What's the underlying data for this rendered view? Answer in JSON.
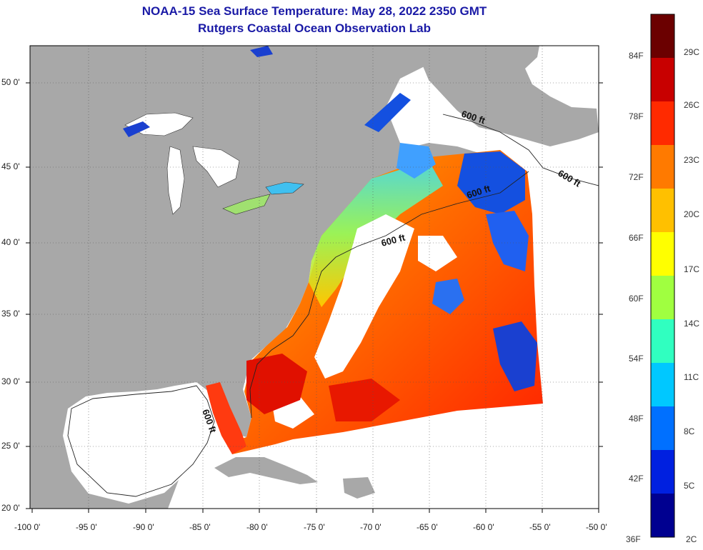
{
  "title": "NOAA-15 Sea Surface Temperature:  May 28, 2022 2350 GMT",
  "subtitle": "Rutgers Coastal Ocean Observation Lab",
  "lat_labels": [
    "50 0'",
    "45 0'",
    "40 0'",
    "35 0'",
    "30 0'",
    "25 0'",
    "20 0'"
  ],
  "lon_labels": [
    "-100 0'",
    "-95 0'",
    "-90 0'",
    "-85 0'",
    "-80 0'",
    "-75 0'",
    "-70 0'",
    "-65 0'",
    "-60 0'",
    "-55 0'",
    "-50 0'"
  ],
  "contour_labels": [
    "600 ft",
    "600 ft",
    "600 ft",
    "600 ft",
    "600 ft"
  ],
  "colorbar": {
    "fahrenheit_labels": [
      "84F",
      "78F",
      "72F",
      "66F",
      "60F",
      "54F",
      "48F",
      "42F",
      "36F"
    ],
    "celsius_labels": [
      "29C",
      "26C",
      "23C",
      "20C",
      "17C",
      "14C",
      "11C",
      "8C",
      "5C",
      "2C"
    ],
    "colors": [
      "#6b0000",
      "#c80000",
      "#ff2a00",
      "#ff7a00",
      "#ffc000",
      "#ffff00",
      "#a0ff40",
      "#30ffc0",
      "#00c8ff",
      "#0070ff",
      "#0020e0",
      "#000090"
    ]
  },
  "colors": {
    "land": "#a8a8a8",
    "no_data": "#ffffff",
    "title": "#1a1aa6",
    "warm": "#ff3a10",
    "cool": "#1450e0"
  }
}
